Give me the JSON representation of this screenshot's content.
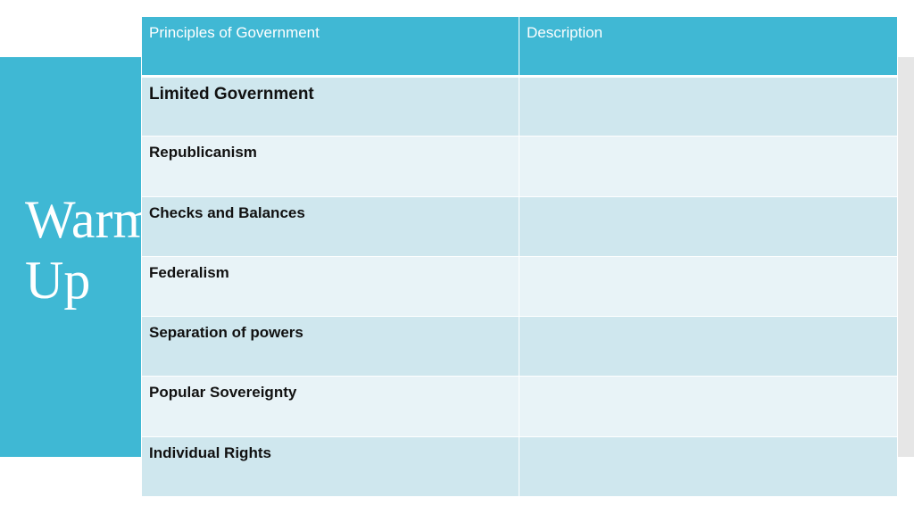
{
  "slide": {
    "title_line1": "Warm",
    "title_line2": "Up"
  },
  "table": {
    "headers": [
      "Principles of Government",
      "Description"
    ],
    "rows": [
      {
        "principle": "Limited Government",
        "description": ""
      },
      {
        "principle": "Republicanism",
        "description": ""
      },
      {
        "principle": "Checks and Balances",
        "description": ""
      },
      {
        "principle": "Federalism",
        "description": ""
      },
      {
        "principle": "Separation of powers",
        "description": ""
      },
      {
        "principle": "Popular Sovereignty",
        "description": ""
      },
      {
        "principle": "Individual Rights",
        "description": ""
      }
    ]
  },
  "colors": {
    "accent": "#3fb8d4",
    "row_dark": "#cfe7ee",
    "row_light": "#e8f3f7",
    "side_bar": "#e6e6e6"
  }
}
